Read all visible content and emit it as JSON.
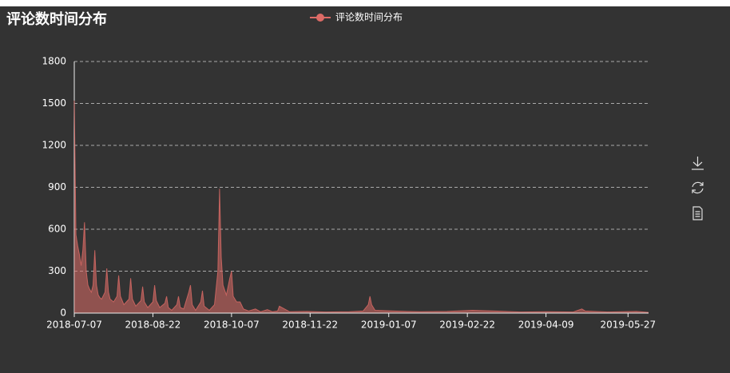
{
  "chart_data": {
    "type": "line",
    "area": true,
    "title": "评论数时间分布",
    "x": [
      "2018-07-07",
      "2018-07-08",
      "2018-07-09",
      "2018-07-10",
      "2018-07-11",
      "2018-07-12",
      "2018-07-13",
      "2018-07-14",
      "2018-07-15",
      "2018-07-16",
      "2018-07-17",
      "2018-07-18",
      "2018-07-19",
      "2018-07-20",
      "2018-07-21",
      "2018-07-22",
      "2018-07-23",
      "2018-07-25",
      "2018-07-26",
      "2018-07-27",
      "2018-07-28",
      "2018-07-30",
      "2018-08-01",
      "2018-08-02",
      "2018-08-03",
      "2018-08-05",
      "2018-08-08",
      "2018-08-09",
      "2018-08-10",
      "2018-08-12",
      "2018-08-15",
      "2018-08-16",
      "2018-08-17",
      "2018-08-19",
      "2018-08-22",
      "2018-08-23",
      "2018-08-24",
      "2018-08-26",
      "2018-08-29",
      "2018-08-30",
      "2018-08-31",
      "2018-09-02",
      "2018-09-05",
      "2018-09-06",
      "2018-09-07",
      "2018-09-09",
      "2018-09-12",
      "2018-09-13",
      "2018-09-14",
      "2018-09-16",
      "2018-09-19",
      "2018-09-20",
      "2018-09-21",
      "2018-09-24",
      "2018-09-27",
      "2018-09-29",
      "2018-09-30",
      "2018-10-01",
      "2018-10-02",
      "2018-10-04",
      "2018-10-06",
      "2018-10-07",
      "2018-10-08",
      "2018-10-10",
      "2018-10-12",
      "2018-10-14",
      "2018-10-17",
      "2018-10-21",
      "2018-10-24",
      "2018-10-28",
      "2018-10-31",
      "2018-11-03",
      "2018-11-04",
      "2018-11-10",
      "2018-11-20",
      "2018-12-01",
      "2018-12-15",
      "2018-12-23",
      "2018-12-26",
      "2018-12-27",
      "2018-12-28",
      "2018-12-30",
      "2019-01-10",
      "2019-01-25",
      "2019-02-10",
      "2019-02-25",
      "2019-03-10",
      "2019-03-25",
      "2019-04-10",
      "2019-04-25",
      "2019-04-30",
      "2019-05-02",
      "2019-05-15",
      "2019-06-01",
      "2019-06-08"
    ],
    "series": [
      {
        "name": "评论数时间分布",
        "color": "#dd6b66",
        "values": [
          1520,
          560,
          480,
          420,
          340,
          450,
          650,
          300,
          200,
          170,
          150,
          200,
          450,
          200,
          130,
          110,
          100,
          150,
          320,
          150,
          100,
          80,
          120,
          270,
          120,
          60,
          100,
          250,
          100,
          50,
          90,
          190,
          80,
          40,
          80,
          200,
          90,
          40,
          70,
          120,
          40,
          20,
          60,
          120,
          40,
          30,
          150,
          200,
          60,
          20,
          80,
          160,
          50,
          20,
          60,
          300,
          890,
          400,
          200,
          130,
          250,
          300,
          120,
          80,
          80,
          30,
          15,
          30,
          10,
          25,
          10,
          15,
          50,
          10,
          12,
          8,
          10,
          15,
          60,
          120,
          60,
          20,
          15,
          10,
          12,
          20,
          15,
          8,
          10,
          8,
          30,
          15,
          8,
          12,
          5
        ]
      }
    ],
    "xlim": [
      "2018-07-07",
      "2019-06-08"
    ],
    "xticks": [
      "2018-07-07",
      "2018-08-22",
      "2018-10-07",
      "2018-11-22",
      "2019-01-07",
      "2019-02-22",
      "2019-04-09",
      "2019-05-27"
    ],
    "ylim": [
      0,
      1800
    ],
    "yticks": [
      0,
      300,
      600,
      900,
      1200,
      1500,
      1800
    ],
    "grid": true
  }
}
